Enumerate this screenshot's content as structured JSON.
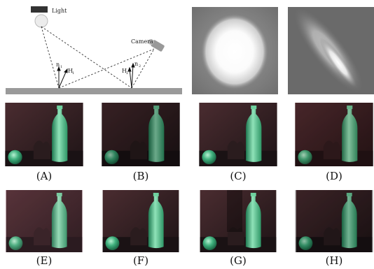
{
  "diagram": {
    "light_label": "Light",
    "camera_label": "Camera",
    "vector_labels": [
      "n",
      "H",
      "H",
      "n"
    ],
    "vector_subscripts": [
      "1",
      "1",
      "2",
      "2"
    ]
  },
  "highlight_maps": [
    "isotropic-highlight",
    "anisotropic-highlight"
  ],
  "renders": [
    {
      "label": "(A)"
    },
    {
      "label": "(B)"
    },
    {
      "label": "(C)"
    },
    {
      "label": "(D)"
    },
    {
      "label": "(E)"
    },
    {
      "label": "(F)"
    },
    {
      "label": "(G)"
    },
    {
      "label": "(H)"
    }
  ],
  "colors": {
    "scene_bg": "#3a2426",
    "bottle": "#3fb07d",
    "bottle_light": "#8fe2b8",
    "ground": "#9a9a9a"
  }
}
